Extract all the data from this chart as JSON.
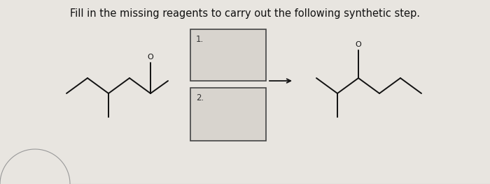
{
  "title": "Fill in the missing reagents to carry out the following synthetic step.",
  "title_fontsize": 10.5,
  "bg_color": "#e8e5e0",
  "box1_label": "1.",
  "box2_label": "2.",
  "arrow_color": "#111111",
  "line_color": "#111111",
  "box_facecolor": "#d8d4ce",
  "box_edgecolor": "#444444",
  "mol_lw": 1.4
}
